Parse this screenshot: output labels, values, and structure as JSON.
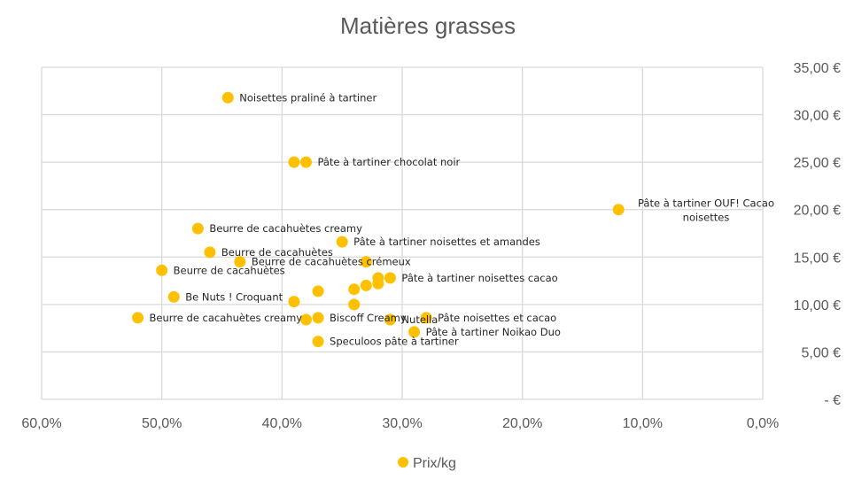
{
  "chart_data": {
    "type": "scatter",
    "title": "Matières grasses",
    "xlabel": "",
    "ylabel": "",
    "x_axis": {
      "min": 0.0,
      "max": 0.6,
      "reversed": true,
      "step": 0.1,
      "tick_labels": [
        "60,0%",
        "50,0%",
        "40,0%",
        "30,0%",
        "20,0%",
        "10,0%",
        "0,0%"
      ]
    },
    "y_axis": {
      "min": 0,
      "max": 35,
      "position": "right",
      "step": 5,
      "tick_labels": [
        "35,00 €",
        "30,00 €",
        "25,00 €",
        "20,00 €",
        "15,00 €",
        "10,00 €",
        "5,00 €",
        "-   €"
      ]
    },
    "grid": true,
    "legend": {
      "position": "bottom",
      "entries": [
        "Prix/kg"
      ]
    },
    "marker_color": "#FFC000",
    "series": [
      {
        "name": "Prix/kg",
        "points": [
          {
            "x": 0.445,
            "y": 31.8,
            "label": "Noisettes praliné à tartiner"
          },
          {
            "x": 0.39,
            "y": 25.0,
            "label": ""
          },
          {
            "x": 0.38,
            "y": 25.0,
            "label": "Pâte à tartiner chocolat noir"
          },
          {
            "x": 0.12,
            "y": 20.0,
            "label": "Pâte à tartiner OUF! Cacao noisettes"
          },
          {
            "x": 0.47,
            "y": 18.0,
            "label": "Beurre de cacahuètes creamy"
          },
          {
            "x": 0.35,
            "y": 16.6,
            "label": "Pâte à tartiner noisettes et amandes"
          },
          {
            "x": 0.46,
            "y": 15.5,
            "label": "Beurre de cacahuètes"
          },
          {
            "x": 0.435,
            "y": 14.5,
            "label": "Beurre de cacahuètes crémeux"
          },
          {
            "x": 0.33,
            "y": 14.5,
            "label": ""
          },
          {
            "x": 0.5,
            "y": 13.6,
            "label": "Beurre de cacahuètes"
          },
          {
            "x": 0.32,
            "y": 12.8,
            "label": ""
          },
          {
            "x": 0.31,
            "y": 12.8,
            "label": "Pâte à tartiner noisettes cacao"
          },
          {
            "x": 0.32,
            "y": 12.2,
            "label": ""
          },
          {
            "x": 0.33,
            "y": 12.0,
            "label": ""
          },
          {
            "x": 0.34,
            "y": 11.6,
            "label": ""
          },
          {
            "x": 0.37,
            "y": 11.4,
            "label": ""
          },
          {
            "x": 0.49,
            "y": 10.8,
            "label": "Be Nuts ! Croquant"
          },
          {
            "x": 0.39,
            "y": 10.3,
            "label": ""
          },
          {
            "x": 0.34,
            "y": 10.0,
            "label": ""
          },
          {
            "x": 0.52,
            "y": 8.6,
            "label": "Beurre de cacahuètes creamy"
          },
          {
            "x": 0.38,
            "y": 8.4,
            "label": ""
          },
          {
            "x": 0.37,
            "y": 8.6,
            "label": "Biscoff Creamy"
          },
          {
            "x": 0.31,
            "y": 8.4,
            "label": "Nutella"
          },
          {
            "x": 0.28,
            "y": 8.6,
            "label": "Pâte noisettes et cacao"
          },
          {
            "x": 0.29,
            "y": 7.1,
            "label": "Pâte à tartiner Noikao Duo"
          },
          {
            "x": 0.37,
            "y": 6.1,
            "label": "Speculoos pâte à tartiner"
          }
        ]
      }
    ]
  }
}
